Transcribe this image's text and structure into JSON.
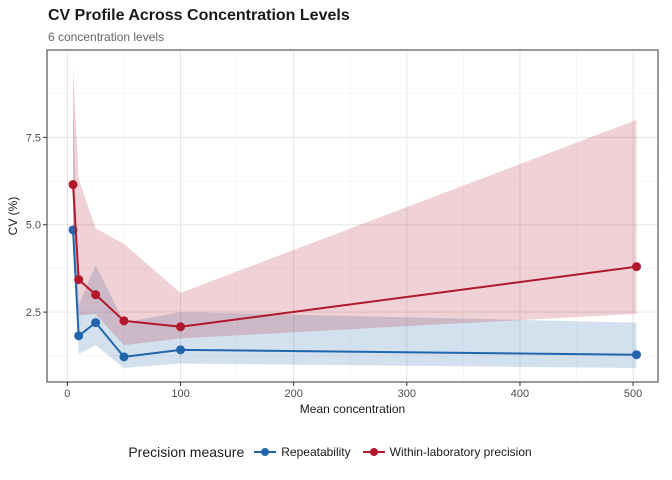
{
  "chart_data": {
    "type": "line",
    "title": "CV Profile Across Concentration Levels",
    "subtitle": "6 concentration levels",
    "xlabel": "Mean concentration",
    "ylabel": "CV (%)",
    "xlim": [
      -18,
      522
    ],
    "ylim": [
      0.5,
      10.0
    ],
    "xticks": [
      0,
      100,
      200,
      300,
      400,
      500
    ],
    "yticks": [
      2.5,
      5.0,
      7.5
    ],
    "ytick_labels": [
      "2.5",
      "5.0",
      "7.5"
    ],
    "grid": true,
    "legend_title": "Precision measure",
    "legend_position": "bottom",
    "x": [
      5,
      10,
      25,
      50,
      100,
      503
    ],
    "series": [
      {
        "name": "Repeatability",
        "color": "#2166AC",
        "values": [
          4.85,
          1.82,
          2.2,
          1.22,
          1.42,
          1.28
        ],
        "lower": [
          4.4,
          1.3,
          1.55,
          0.9,
          1.03,
          0.9
        ],
        "upper": [
          8.5,
          2.7,
          3.85,
          2.2,
          2.5,
          2.2
        ]
      },
      {
        "name": "Within-laboratory precision",
        "color": "#B2182B",
        "values": [
          6.15,
          3.43,
          3.0,
          2.25,
          2.08,
          3.8
        ],
        "lower": [
          5.0,
          2.4,
          2.45,
          1.55,
          1.75,
          2.45
        ],
        "upper": [
          9.5,
          6.3,
          4.9,
          4.45,
          3.05,
          8.0
        ]
      }
    ]
  }
}
